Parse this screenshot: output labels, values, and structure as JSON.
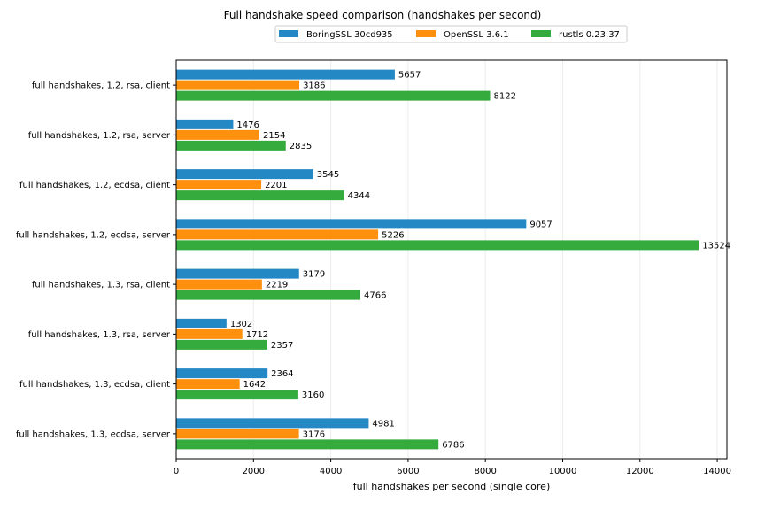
{
  "chart_data": {
    "type": "bar",
    "orientation": "horizontal",
    "title": "Full handshake speed comparison (handshakes per second)",
    "xlabel": "full handshakes per second (single core)",
    "ylabel": "",
    "xlim": [
      0,
      14250
    ],
    "xticks": [
      0,
      2000,
      4000,
      6000,
      8000,
      10000,
      12000,
      14000
    ],
    "grid": "vertical, faint",
    "legend_position": "top-center",
    "categories": [
      "full handshakes, 1.2, rsa, client",
      "full handshakes, 1.2, rsa, server",
      "full handshakes, 1.2, ecdsa, client",
      "full handshakes, 1.2, ecdsa, server",
      "full handshakes, 1.3, rsa, client",
      "full handshakes, 1.3, rsa, server",
      "full handshakes, 1.3, ecdsa, client",
      "full handshakes, 1.3, ecdsa, server"
    ],
    "series": [
      {
        "name": "BoringSSL 30cd935",
        "color": "#2388c4",
        "values": [
          5657,
          1476,
          3545,
          9057,
          3179,
          1302,
          2364,
          4981
        ]
      },
      {
        "name": "OpenSSL 3.6.1",
        "color": "#ff900e",
        "values": [
          3186,
          2154,
          2201,
          5226,
          2219,
          1712,
          1642,
          3176
        ]
      },
      {
        "name": "rustls 0.23.37",
        "color": "#35ab3e",
        "values": [
          8122,
          2835,
          4344,
          13524,
          4766,
          2357,
          3160,
          6786
        ]
      }
    ]
  }
}
